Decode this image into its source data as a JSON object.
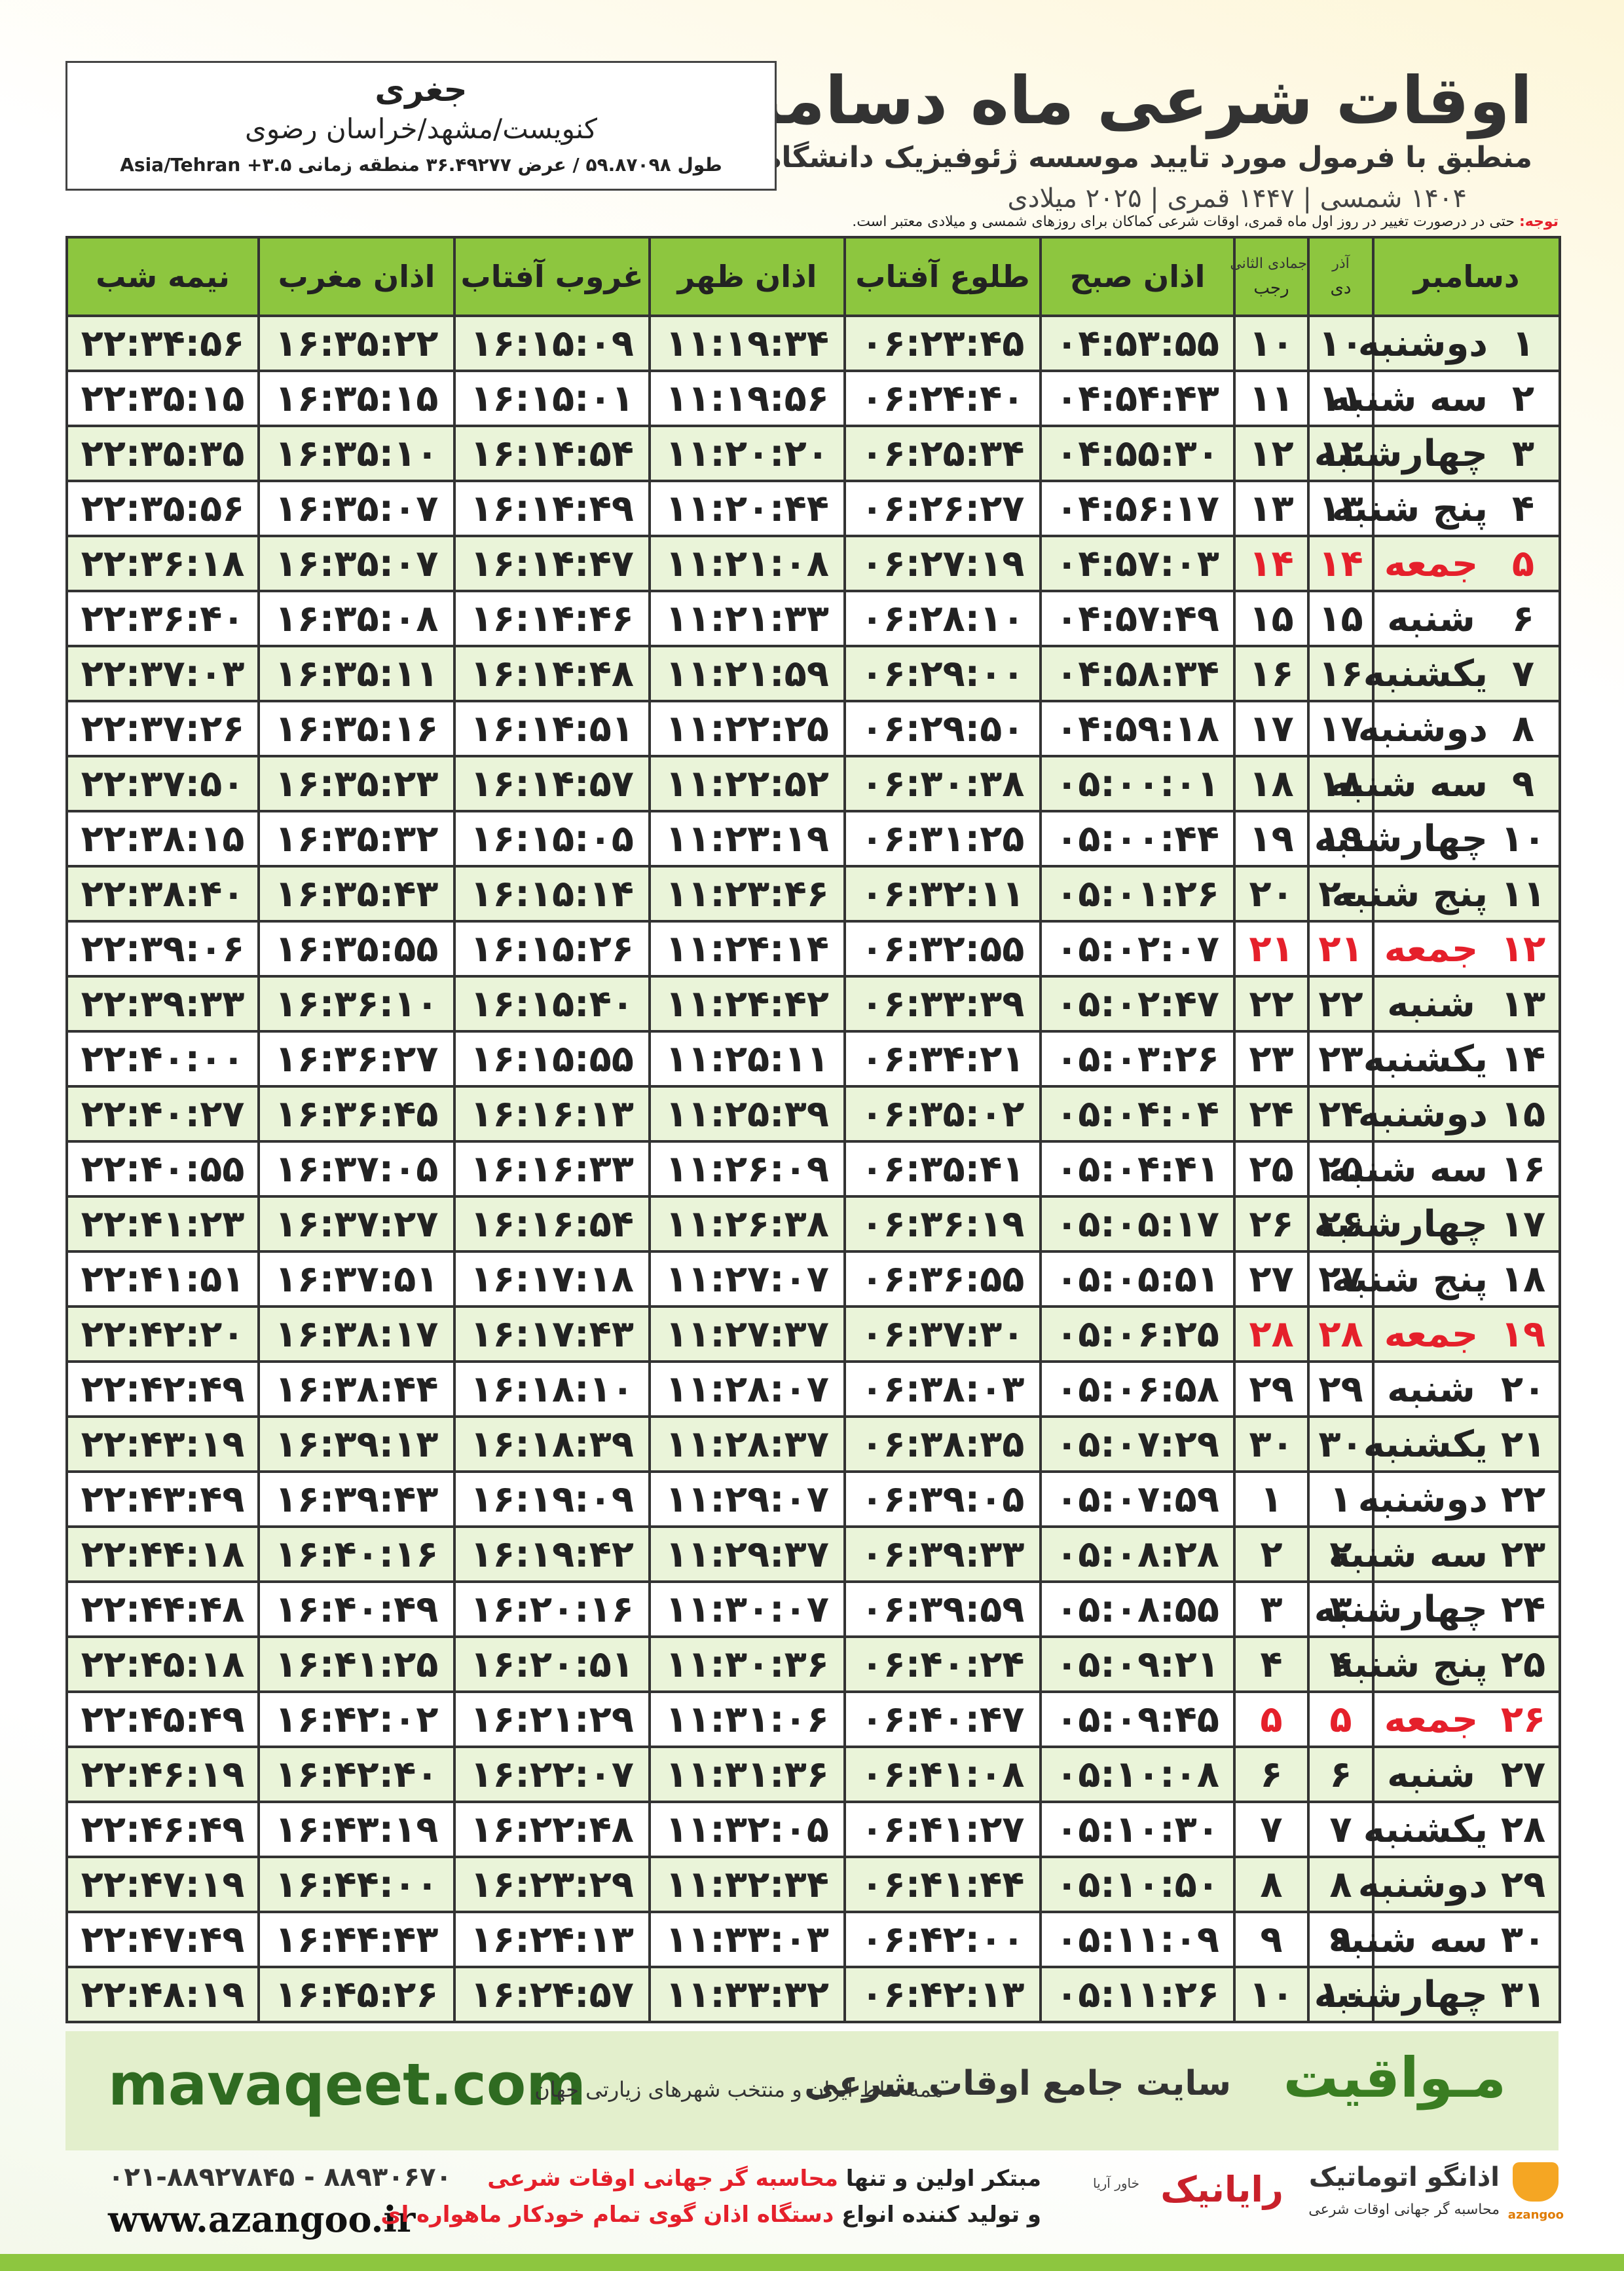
{
  "header": {
    "title": "اوقات شرعی ماه دسامبر",
    "subtitle": "منطبق با فرمول مورد تایید موسسه ژئوفیزیک دانشگاه تهران",
    "dates": "۱۴۰۴ شمسی | ۱۴۴۷ قمری | ۲۰۲۵ میلادی"
  },
  "location": {
    "name": "جغری",
    "region": "کنویست/مشهد/خراسان رضوی",
    "coords": "طول ۵۹.۸۷۰۹۸ / عرض ۳۶.۴۹۲۷۷ منطقه زمانی ۳.۵+ Asia/Tehran"
  },
  "note": {
    "label": "توجه:",
    "text": "حتی در درصورت تغییر در روز اول ماه قمری، اوقات شرعی کماکان برای روزهای شمسی و میلادی معتبر است."
  },
  "table": {
    "columns": [
      "دسامبر",
      [
        "آذر",
        "دی"
      ],
      [
        "جمادی الثانی",
        "رجب"
      ],
      "اذان صبح",
      "طلوع آفتاب",
      "اذان ظهر",
      "غروب آفتاب",
      "اذان مغرب",
      "نیمه شب"
    ],
    "highlight": {
      "color": "#e5202b",
      "rows": [
        4,
        11,
        18,
        25
      ]
    },
    "rows": [
      [
        "۱",
        "دوشنبه",
        "۱۰",
        "۱۰",
        "۰۴:۵۳:۵۵",
        "۰۶:۲۳:۴۵",
        "۱۱:۱۹:۳۴",
        "۱۶:۱۵:۰۹",
        "۱۶:۳۵:۲۲",
        "۲۲:۳۴:۵۶"
      ],
      [
        "۲",
        "سه شنبه",
        "۱۱",
        "۱۱",
        "۰۴:۵۴:۴۳",
        "۰۶:۲۴:۴۰",
        "۱۱:۱۹:۵۶",
        "۱۶:۱۵:۰۱",
        "۱۶:۳۵:۱۵",
        "۲۲:۳۵:۱۵"
      ],
      [
        "۳",
        "چهارشنبه",
        "۱۲",
        "۱۲",
        "۰۴:۵۵:۳۰",
        "۰۶:۲۵:۳۴",
        "۱۱:۲۰:۲۰",
        "۱۶:۱۴:۵۴",
        "۱۶:۳۵:۱۰",
        "۲۲:۳۵:۳۵"
      ],
      [
        "۴",
        "پنج شنبه",
        "۱۳",
        "۱۳",
        "۰۴:۵۶:۱۷",
        "۰۶:۲۶:۲۷",
        "۱۱:۲۰:۴۴",
        "۱۶:۱۴:۴۹",
        "۱۶:۳۵:۰۷",
        "۲۲:۳۵:۵۶"
      ],
      [
        "۵",
        "جمعه",
        "۱۴",
        "۱۴",
        "۰۴:۵۷:۰۳",
        "۰۶:۲۷:۱۹",
        "۱۱:۲۱:۰۸",
        "۱۶:۱۴:۴۷",
        "۱۶:۳۵:۰۷",
        "۲۲:۳۶:۱۸"
      ],
      [
        "۶",
        "شنبه",
        "۱۵",
        "۱۵",
        "۰۴:۵۷:۴۹",
        "۰۶:۲۸:۱۰",
        "۱۱:۲۱:۳۳",
        "۱۶:۱۴:۴۶",
        "۱۶:۳۵:۰۸",
        "۲۲:۳۶:۴۰"
      ],
      [
        "۷",
        "یکشنبه",
        "۱۶",
        "۱۶",
        "۰۴:۵۸:۳۴",
        "۰۶:۲۹:۰۰",
        "۱۱:۲۱:۵۹",
        "۱۶:۱۴:۴۸",
        "۱۶:۳۵:۱۱",
        "۲۲:۳۷:۰۳"
      ],
      [
        "۸",
        "دوشنبه",
        "۱۷",
        "۱۷",
        "۰۴:۵۹:۱۸",
        "۰۶:۲۹:۵۰",
        "۱۱:۲۲:۲۵",
        "۱۶:۱۴:۵۱",
        "۱۶:۳۵:۱۶",
        "۲۲:۳۷:۲۶"
      ],
      [
        "۹",
        "سه شنبه",
        "۱۸",
        "۱۸",
        "۰۵:۰۰:۰۱",
        "۰۶:۳۰:۳۸",
        "۱۱:۲۲:۵۲",
        "۱۶:۱۴:۵۷",
        "۱۶:۳۵:۲۳",
        "۲۲:۳۷:۵۰"
      ],
      [
        "۱۰",
        "چهارشنبه",
        "۱۹",
        "۱۹",
        "۰۵:۰۰:۴۴",
        "۰۶:۳۱:۲۵",
        "۱۱:۲۳:۱۹",
        "۱۶:۱۵:۰۵",
        "۱۶:۳۵:۳۲",
        "۲۲:۳۸:۱۵"
      ],
      [
        "۱۱",
        "پنج شنبه",
        "۲۰",
        "۲۰",
        "۰۵:۰۱:۲۶",
        "۰۶:۳۲:۱۱",
        "۱۱:۲۳:۴۶",
        "۱۶:۱۵:۱۴",
        "۱۶:۳۵:۴۳",
        "۲۲:۳۸:۴۰"
      ],
      [
        "۱۲",
        "جمعه",
        "۲۱",
        "۲۱",
        "۰۵:۰۲:۰۷",
        "۰۶:۳۲:۵۵",
        "۱۱:۲۴:۱۴",
        "۱۶:۱۵:۲۶",
        "۱۶:۳۵:۵۵",
        "۲۲:۳۹:۰۶"
      ],
      [
        "۱۳",
        "شنبه",
        "۲۲",
        "۲۲",
        "۰۵:۰۲:۴۷",
        "۰۶:۳۳:۳۹",
        "۱۱:۲۴:۴۲",
        "۱۶:۱۵:۴۰",
        "۱۶:۳۶:۱۰",
        "۲۲:۳۹:۳۳"
      ],
      [
        "۱۴",
        "یکشنبه",
        "۲۳",
        "۲۳",
        "۰۵:۰۳:۲۶",
        "۰۶:۳۴:۲۱",
        "۱۱:۲۵:۱۱",
        "۱۶:۱۵:۵۵",
        "۱۶:۳۶:۲۷",
        "۲۲:۴۰:۰۰"
      ],
      [
        "۱۵",
        "دوشنبه",
        "۲۴",
        "۲۴",
        "۰۵:۰۴:۰۴",
        "۰۶:۳۵:۰۲",
        "۱۱:۲۵:۳۹",
        "۱۶:۱۶:۱۳",
        "۱۶:۳۶:۴۵",
        "۲۲:۴۰:۲۷"
      ],
      [
        "۱۶",
        "سه شنبه",
        "۲۵",
        "۲۵",
        "۰۵:۰۴:۴۱",
        "۰۶:۳۵:۴۱",
        "۱۱:۲۶:۰۹",
        "۱۶:۱۶:۳۳",
        "۱۶:۳۷:۰۵",
        "۲۲:۴۰:۵۵"
      ],
      [
        "۱۷",
        "چهارشنبه",
        "۲۶",
        "۲۶",
        "۰۵:۰۵:۱۷",
        "۰۶:۳۶:۱۹",
        "۱۱:۲۶:۳۸",
        "۱۶:۱۶:۵۴",
        "۱۶:۳۷:۲۷",
        "۲۲:۴۱:۲۳"
      ],
      [
        "۱۸",
        "پنج شنبه",
        "۲۷",
        "۲۷",
        "۰۵:۰۵:۵۱",
        "۰۶:۳۶:۵۵",
        "۱۱:۲۷:۰۷",
        "۱۶:۱۷:۱۸",
        "۱۶:۳۷:۵۱",
        "۲۲:۴۱:۵۱"
      ],
      [
        "۱۹",
        "جمعه",
        "۲۸",
        "۲۸",
        "۰۵:۰۶:۲۵",
        "۰۶:۳۷:۳۰",
        "۱۱:۲۷:۳۷",
        "۱۶:۱۷:۴۳",
        "۱۶:۳۸:۱۷",
        "۲۲:۴۲:۲۰"
      ],
      [
        "۲۰",
        "شنبه",
        "۲۹",
        "۲۹",
        "۰۵:۰۶:۵۸",
        "۰۶:۳۸:۰۳",
        "۱۱:۲۸:۰۷",
        "۱۶:۱۸:۱۰",
        "۱۶:۳۸:۴۴",
        "۲۲:۴۲:۴۹"
      ],
      [
        "۲۱",
        "یکشنبه",
        "۳۰",
        "۳۰",
        "۰۵:۰۷:۲۹",
        "۰۶:۳۸:۳۵",
        "۱۱:۲۸:۳۷",
        "۱۶:۱۸:۳۹",
        "۱۶:۳۹:۱۳",
        "۲۲:۴۳:۱۹"
      ],
      [
        "۲۲",
        "دوشنبه",
        "۱",
        "۱",
        "۰۵:۰۷:۵۹",
        "۰۶:۳۹:۰۵",
        "۱۱:۲۹:۰۷",
        "۱۶:۱۹:۰۹",
        "۱۶:۳۹:۴۳",
        "۲۲:۴۳:۴۹"
      ],
      [
        "۲۳",
        "سه شنبه",
        "۲",
        "۲",
        "۰۵:۰۸:۲۸",
        "۰۶:۳۹:۳۳",
        "۱۱:۲۹:۳۷",
        "۱۶:۱۹:۴۲",
        "۱۶:۴۰:۱۶",
        "۲۲:۴۴:۱۸"
      ],
      [
        "۲۴",
        "چهارشنبه",
        "۳",
        "۳",
        "۰۵:۰۸:۵۵",
        "۰۶:۳۹:۵۹",
        "۱۱:۳۰:۰۷",
        "۱۶:۲۰:۱۶",
        "۱۶:۴۰:۴۹",
        "۲۲:۴۴:۴۸"
      ],
      [
        "۲۵",
        "پنج شنبه",
        "۴",
        "۴",
        "۰۵:۰۹:۲۱",
        "۰۶:۴۰:۲۴",
        "۱۱:۳۰:۳۶",
        "۱۶:۲۰:۵۱",
        "۱۶:۴۱:۲۵",
        "۲۲:۴۵:۱۸"
      ],
      [
        "۲۶",
        "جمعه",
        "۵",
        "۵",
        "۰۵:۰۹:۴۵",
        "۰۶:۴۰:۴۷",
        "۱۱:۳۱:۰۶",
        "۱۶:۲۱:۲۹",
        "۱۶:۴۲:۰۲",
        "۲۲:۴۵:۴۹"
      ],
      [
        "۲۷",
        "شنبه",
        "۶",
        "۶",
        "۰۵:۱۰:۰۸",
        "۰۶:۴۱:۰۸",
        "۱۱:۳۱:۳۶",
        "۱۶:۲۲:۰۷",
        "۱۶:۴۲:۴۰",
        "۲۲:۴۶:۱۹"
      ],
      [
        "۲۸",
        "یکشنبه",
        "۷",
        "۷",
        "۰۵:۱۰:۳۰",
        "۰۶:۴۱:۲۷",
        "۱۱:۳۲:۰۵",
        "۱۶:۲۲:۴۸",
        "۱۶:۴۳:۱۹",
        "۲۲:۴۶:۴۹"
      ],
      [
        "۲۹",
        "دوشنبه",
        "۸",
        "۸",
        "۰۵:۱۰:۵۰",
        "۰۶:۴۱:۴۴",
        "۱۱:۳۲:۳۴",
        "۱۶:۲۳:۲۹",
        "۱۶:۴۴:۰۰",
        "۲۲:۴۷:۱۹"
      ],
      [
        "۳۰",
        "سه شنبه",
        "۹",
        "۹",
        "۰۵:۱۱:۰۹",
        "۰۶:۴۲:۰۰",
        "۱۱:۳۳:۰۳",
        "۱۶:۲۴:۱۳",
        "۱۶:۴۴:۴۳",
        "۲۲:۴۷:۴۹"
      ],
      [
        "۳۱",
        "چهارشنبه",
        "۱۰",
        "۱۰",
        "۰۵:۱۱:۲۶",
        "۰۶:۴۲:۱۳",
        "۱۱:۳۳:۳۲",
        "۱۶:۲۴:۵۷",
        "۱۶:۴۵:۲۶",
        "۲۲:۴۸:۱۹"
      ]
    ]
  },
  "banner": {
    "brand": "مـواقیت",
    "tagline": "سایت جامع اوقات شرعی",
    "scope": "همه نقاط ایران و منتخب شهرهای زیارتی جهان",
    "site": "mavaqeet.com"
  },
  "footer": {
    "phones": "۰۲۱-۸۸۹۲۷۸۴۵ - ۸۸۹۳۰۶۷۰",
    "web": "www.azangoo.ir",
    "line1_a": "مبتکر اولین و تنها",
    "line1_b": "محاسبه گر جهانی اوقات شرعی",
    "line2_a": "و تولید کننده انواع",
    "line2_b": "دستگاه اذان گوی تمام خودکار ماهواره ای",
    "logo1": "رایانیک",
    "logo1_sub": "خاور آریا",
    "logo2": "اذانگو اتوماتیک",
    "logo2_sub": "محاسبه گر جهانی اوقات شرعی",
    "logo2_mark": "azangoo"
  }
}
